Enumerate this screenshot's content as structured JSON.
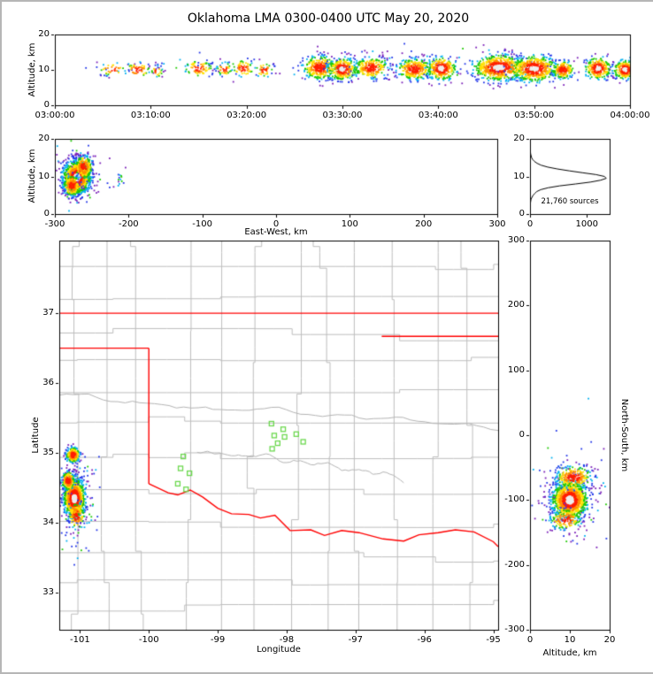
{
  "title": "Oklahoma LMA 0300-0400 UTC May 20, 2020",
  "colors": {
    "background": "#ffffff",
    "frame": "#000000",
    "county_line": "#bdbdbd",
    "river_line": "#b3b3b3",
    "state_boundary": "#ff0000",
    "station_marker": "#6cd84f",
    "density_scale": [
      "#7a1fb8",
      "#2236e8",
      "#00b0f0",
      "#1ec800",
      "#ffe000",
      "#ff8c00",
      "#ff1e00",
      "#ededed"
    ]
  },
  "chart_data": [
    {
      "id": "time_height",
      "type": "scatter",
      "xlabel": "",
      "ylabel": "Altitude, km",
      "xlim": [
        0,
        3600
      ],
      "ylim": [
        0,
        20
      ],
      "xticks": [
        {
          "v": 0,
          "label": "03:00:00"
        },
        {
          "v": 600,
          "label": "03:10:00"
        },
        {
          "v": 1200,
          "label": "03:20:00"
        },
        {
          "v": 1800,
          "label": "03:30:00"
        },
        {
          "v": 2400,
          "label": "03:40:00"
        },
        {
          "v": 3000,
          "label": "03:50:00"
        },
        {
          "v": 3600,
          "label": "04:00:00"
        }
      ],
      "yticks": [
        {
          "v": 0,
          "label": "0"
        },
        {
          "v": 10,
          "label": "10"
        },
        {
          "v": 20,
          "label": "20"
        }
      ],
      "clusters": [
        {
          "cx": 360,
          "cy": 10.2,
          "sx": 45,
          "sy": 0.9,
          "n": 40
        },
        {
          "cx": 520,
          "cy": 10.0,
          "sx": 40,
          "sy": 1.1,
          "n": 55
        },
        {
          "cx": 640,
          "cy": 9.6,
          "sx": 18,
          "sy": 0.8,
          "n": 25
        },
        {
          "cx": 900,
          "cy": 10.4,
          "sx": 45,
          "sy": 1.2,
          "n": 75
        },
        {
          "cx": 1060,
          "cy": 10.2,
          "sx": 25,
          "sy": 1.0,
          "n": 40
        },
        {
          "cx": 1180,
          "cy": 10.4,
          "sx": 35,
          "sy": 1.2,
          "n": 60
        },
        {
          "cx": 1310,
          "cy": 10.0,
          "sx": 30,
          "sy": 1.0,
          "n": 45
        },
        {
          "cx": 1660,
          "cy": 10.6,
          "sx": 55,
          "sy": 1.7,
          "n": 330
        },
        {
          "cx": 1800,
          "cy": 10.2,
          "sx": 45,
          "sy": 1.5,
          "n": 300,
          "core": true
        },
        {
          "cx": 1980,
          "cy": 10.5,
          "sx": 55,
          "sy": 1.5,
          "n": 260
        },
        {
          "cx": 2250,
          "cy": 10.2,
          "sx": 55,
          "sy": 1.5,
          "n": 300
        },
        {
          "cx": 2420,
          "cy": 10.4,
          "sx": 45,
          "sy": 1.6,
          "n": 280,
          "core": true
        },
        {
          "cx": 2780,
          "cy": 10.6,
          "sx": 80,
          "sy": 1.8,
          "n": 650,
          "core": true
        },
        {
          "cx": 3000,
          "cy": 10.3,
          "sx": 70,
          "sy": 1.8,
          "n": 550,
          "core": true
        },
        {
          "cx": 3180,
          "cy": 10.0,
          "sx": 35,
          "sy": 1.3,
          "n": 180
        },
        {
          "cx": 3400,
          "cy": 10.4,
          "sx": 40,
          "sy": 1.5,
          "n": 260,
          "core": true
        },
        {
          "cx": 3570,
          "cy": 10.0,
          "sx": 35,
          "sy": 1.3,
          "n": 240,
          "core": true
        },
        {
          "cx": 2500,
          "cy": 11.5,
          "sx": 600,
          "sy": 2.2,
          "n": 100,
          "faint": true
        },
        {
          "cx": 900,
          "cy": 10.5,
          "sx": 350,
          "sy": 1.4,
          "n": 35,
          "faint": true
        }
      ]
    },
    {
      "id": "ew_height",
      "type": "scatter",
      "xlabel": "East-West, km",
      "ylabel": "Altitude, km",
      "xlim": [
        -300,
        300
      ],
      "ylim": [
        0,
        20
      ],
      "xticks": [
        {
          "v": -300,
          "label": "-300"
        },
        {
          "v": -200,
          "label": "-200"
        },
        {
          "v": -100,
          "label": "-100"
        },
        {
          "v": 0,
          "label": "0"
        },
        {
          "v": 100,
          "label": "100"
        },
        {
          "v": 200,
          "label": "200"
        },
        {
          "v": 300,
          "label": "300"
        }
      ],
      "yticks": [
        {
          "v": 0,
          "label": "0"
        },
        {
          "v": 10,
          "label": "10"
        },
        {
          "v": 20,
          "label": "20"
        }
      ],
      "clusters": [
        {
          "cx": -270,
          "cy": 9.8,
          "sx": 9,
          "sy": 2.1,
          "n": 1300,
          "core": true
        },
        {
          "cx": -261,
          "cy": 12.5,
          "sx": 6,
          "sy": 1.6,
          "n": 220
        },
        {
          "cx": -277,
          "cy": 7.5,
          "sx": 6,
          "sy": 1.4,
          "n": 180
        },
        {
          "cx": -268,
          "cy": 10.0,
          "sx": 16,
          "sy": 3.5,
          "n": 110,
          "faint": true
        },
        {
          "cx": -212,
          "cy": 9.5,
          "sx": 4,
          "sy": 1.2,
          "n": 14,
          "faint": true
        }
      ]
    },
    {
      "id": "alt_histogram",
      "type": "line",
      "xlabel": "",
      "ylabel": "",
      "annotation": "21,760 sources",
      "total_sources": 21760,
      "xlim": [
        0,
        1400
      ],
      "ylim": [
        0,
        20
      ],
      "xticks": [
        {
          "v": 0,
          "label": "0"
        },
        {
          "v": 1000,
          "label": "1000"
        }
      ],
      "yticks": [
        {
          "v": 0,
          "label": "0"
        },
        {
          "v": 10,
          "label": "10"
        },
        {
          "v": 20,
          "label": "20"
        }
      ],
      "profile": [
        [
          0,
          0
        ],
        [
          2,
          3
        ],
        [
          3,
          8
        ],
        [
          4,
          18
        ],
        [
          5,
          55
        ],
        [
          5.5,
          85
        ],
        [
          6,
          120
        ],
        [
          6.5,
          190
        ],
        [
          7,
          320
        ],
        [
          7.5,
          520
        ],
        [
          8,
          800
        ],
        [
          8.5,
          1060
        ],
        [
          9,
          1240
        ],
        [
          9.5,
          1340
        ],
        [
          10,
          1310
        ],
        [
          10.5,
          1160
        ],
        [
          11,
          920
        ],
        [
          11.5,
          690
        ],
        [
          12,
          480
        ],
        [
          12.5,
          310
        ],
        [
          13,
          195
        ],
        [
          13.5,
          125
        ],
        [
          14,
          78
        ],
        [
          14.5,
          48
        ],
        [
          15,
          28
        ],
        [
          16,
          11
        ],
        [
          17,
          4
        ],
        [
          18,
          1
        ],
        [
          19,
          0
        ],
        [
          20,
          0
        ]
      ]
    },
    {
      "id": "map",
      "type": "scatter",
      "xlabel": "Longitude",
      "ylabel": "Latitude",
      "xlim": [
        -101.3,
        -94.93
      ],
      "ylim": [
        32.47,
        38.04
      ],
      "xticks": [
        {
          "v": -101,
          "label": "-101"
        },
        {
          "v": -100,
          "label": "-100"
        },
        {
          "v": -99,
          "label": "-99"
        },
        {
          "v": -98,
          "label": "-98"
        },
        {
          "v": -97,
          "label": "-97"
        },
        {
          "v": -96,
          "label": "-96"
        },
        {
          "v": -95,
          "label": "-95"
        }
      ],
      "yticks": [
        {
          "v": 33,
          "label": "33"
        },
        {
          "v": 34,
          "label": "34"
        },
        {
          "v": 35,
          "label": "35"
        },
        {
          "v": 36,
          "label": "36"
        },
        {
          "v": 37,
          "label": "37"
        }
      ],
      "county_grid": {
        "lon_spacing": 0.52,
        "lat_spacing": 0.45,
        "jog_probability": 0.3,
        "seed": 7
      },
      "rivers": [
        {
          "from": [
            -101.3,
            35.85
          ],
          "to": [
            -94.93,
            35.3
          ]
        },
        {
          "from": [
            -99.3,
            35.0
          ],
          "to": [
            -96.3,
            34.55
          ]
        }
      ],
      "boundaries": [
        {
          "name": "kansas-border",
          "points": [
            [
              -101.3,
              37.0
            ],
            [
              -94.93,
              37.0
            ]
          ]
        },
        {
          "name": "north-segment-east",
          "points": [
            [
              -96.62,
              36.67
            ],
            [
              -94.93,
              36.67
            ]
          ]
        },
        {
          "name": "panhandle-south",
          "points": [
            [
              -101.3,
              36.5
            ],
            [
              -100.0,
              36.5
            ]
          ]
        },
        {
          "name": "texas-west-border",
          "points": [
            [
              -100.0,
              36.5
            ],
            [
              -100.0,
              34.56
            ]
          ]
        },
        {
          "name": "red-river-border",
          "points": [
            [
              -100.0,
              34.56
            ],
            [
              -99.72,
              34.43
            ],
            [
              -99.58,
              34.4
            ],
            [
              -99.4,
              34.47
            ],
            [
              -99.22,
              34.37
            ],
            [
              -99.0,
              34.21
            ],
            [
              -98.8,
              34.13
            ],
            [
              -98.55,
              34.12
            ],
            [
              -98.38,
              34.07
            ],
            [
              -98.17,
              34.11
            ],
            [
              -97.95,
              33.89
            ],
            [
              -97.65,
              33.9
            ],
            [
              -97.45,
              33.82
            ],
            [
              -97.2,
              33.89
            ],
            [
              -96.95,
              33.86
            ],
            [
              -96.6,
              33.77
            ],
            [
              -96.3,
              33.74
            ],
            [
              -96.08,
              33.83
            ],
            [
              -95.8,
              33.86
            ],
            [
              -95.55,
              33.9
            ],
            [
              -95.28,
              33.87
            ],
            [
              -95.0,
              33.73
            ],
            [
              -94.93,
              33.66
            ]
          ]
        }
      ],
      "stations": [
        [
          -99.5,
          34.95
        ],
        [
          -99.54,
          34.78
        ],
        [
          -99.41,
          34.71
        ],
        [
          -99.58,
          34.56
        ],
        [
          -99.46,
          34.48
        ],
        [
          -98.22,
          35.42
        ],
        [
          -98.05,
          35.34
        ],
        [
          -98.18,
          35.25
        ],
        [
          -98.03,
          35.23
        ],
        [
          -98.13,
          35.14
        ],
        [
          -98.21,
          35.06
        ],
        [
          -97.86,
          35.27
        ],
        [
          -97.76,
          35.16
        ]
      ],
      "clusters": [
        {
          "cx": -101.08,
          "cy": 34.35,
          "sx": 0.075,
          "sy": 0.14,
          "n": 1100,
          "core": true
        },
        {
          "cx": -101.1,
          "cy": 34.97,
          "sx": 0.05,
          "sy": 0.055,
          "n": 230
        },
        {
          "cx": -101.17,
          "cy": 34.6,
          "sx": 0.05,
          "sy": 0.07,
          "n": 200
        },
        {
          "cx": -101.05,
          "cy": 34.1,
          "sx": 0.06,
          "sy": 0.1,
          "n": 120
        },
        {
          "cx": -101.05,
          "cy": 34.4,
          "sx": 0.16,
          "sy": 0.4,
          "n": 130,
          "faint": true
        }
      ]
    },
    {
      "id": "ns_height",
      "type": "scatter",
      "xlabel": "Altitude, km",
      "ylabel_right": "North-South, km",
      "xlim": [
        0,
        20
      ],
      "ylim": [
        -300,
        300
      ],
      "xticks": [
        {
          "v": 0,
          "label": "0"
        },
        {
          "v": 10,
          "label": "10"
        },
        {
          "v": 20,
          "label": "20"
        }
      ],
      "yticks": [
        {
          "v": 300,
          "label": "300"
        },
        {
          "v": 200,
          "label": "200"
        },
        {
          "v": 100,
          "label": "100"
        },
        {
          "v": 0,
          "label": "0"
        },
        {
          "v": -100,
          "label": "-100"
        },
        {
          "v": -200,
          "label": "-200"
        },
        {
          "v": -300,
          "label": "-300"
        }
      ],
      "clusters": [
        {
          "cx": 10,
          "cy": -100,
          "sx": 2.2,
          "sy": 14,
          "n": 1100,
          "core": true
        },
        {
          "cx": 11,
          "cy": -65,
          "sx": 2.3,
          "sy": 9,
          "n": 260
        },
        {
          "cx": 9,
          "cy": -130,
          "sx": 2.0,
          "sy": 8,
          "n": 150
        },
        {
          "cx": 10.5,
          "cy": -95,
          "sx": 4.5,
          "sy": 35,
          "n": 130,
          "faint": true
        }
      ]
    }
  ]
}
